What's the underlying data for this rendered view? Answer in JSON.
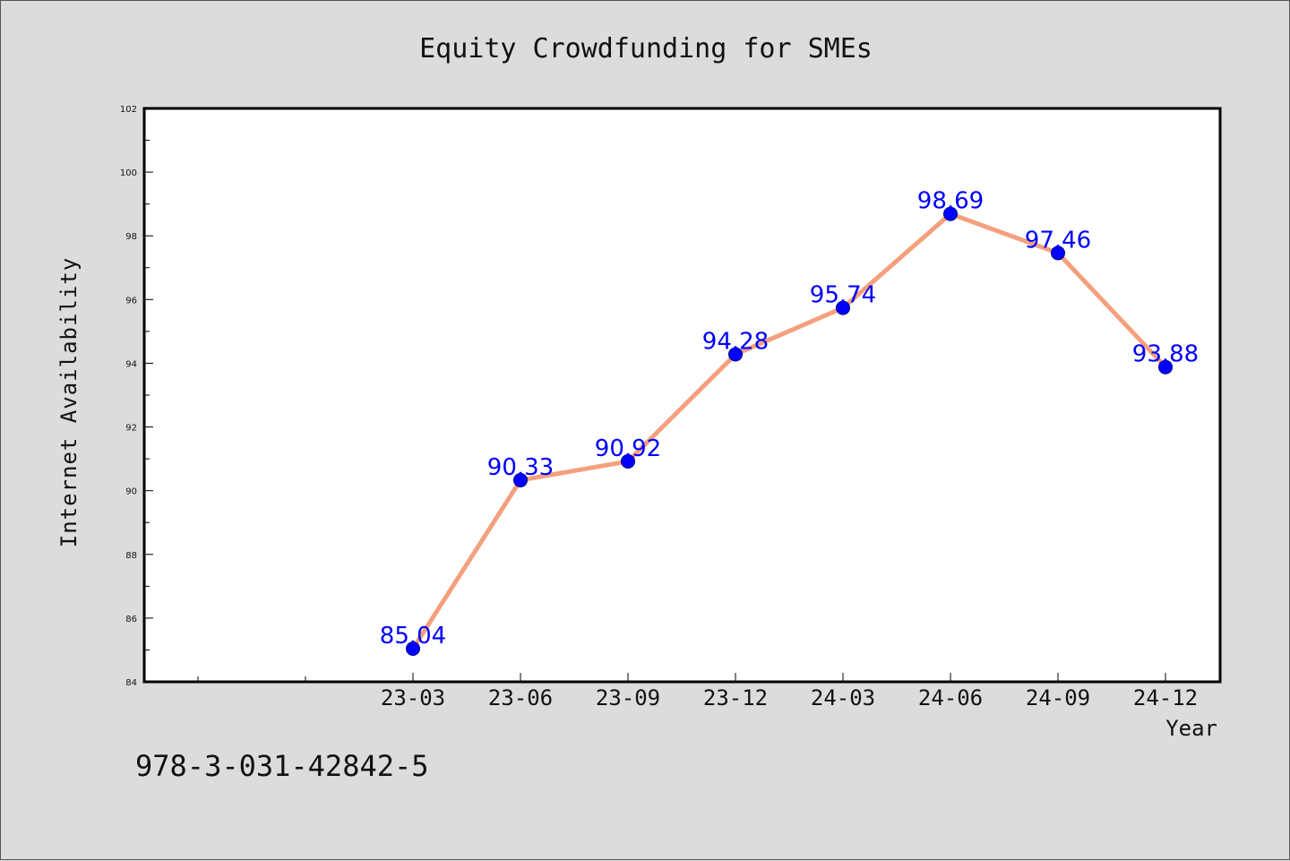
{
  "chart_data": {
    "type": "line",
    "title": "Equity Crowdfunding for SMEs",
    "xlabel": "Year",
    "ylabel": "Internet Availability",
    "categories": [
      "23-03",
      "23-06",
      "23-09",
      "23-12",
      "24-03",
      "24-06",
      "24-09",
      "24-12"
    ],
    "series": [
      {
        "values": [
          85.04,
          90.33,
          90.92,
          94.28,
          95.74,
          98.69,
          97.46,
          93.88
        ],
        "line_color": "#f4a07e",
        "marker_color": "#0000ff"
      }
    ],
    "ylim": [
      84,
      102
    ],
    "yticks": [
      84,
      86,
      88,
      90,
      92,
      94,
      96,
      98,
      100,
      102
    ],
    "data_labels": [
      "85.04",
      "90.33",
      "90.92",
      "94.28",
      "95.74",
      "98.69",
      "97.46",
      "93.88"
    ],
    "grid": false,
    "background": "#dcdcdc",
    "plot_background": "#ffffff"
  },
  "footer_text": "978-3-031-42842-5"
}
